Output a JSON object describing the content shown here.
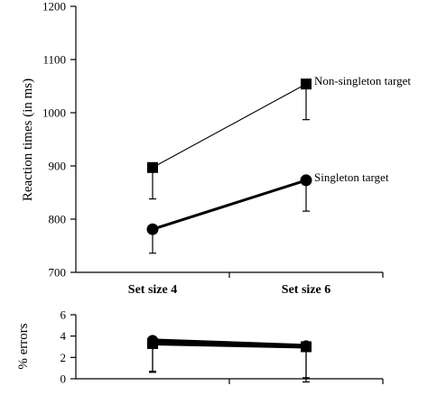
{
  "chart_data": [
    {
      "type": "line",
      "categories": [
        "Set size 4",
        "Set size 6"
      ],
      "ylabel": "Reaction times (in ms)",
      "ylim": [
        700,
        1200
      ],
      "yticks": [
        "700",
        "800",
        "900",
        "1000",
        "1100",
        "1200"
      ],
      "series": [
        {
          "name": "Non-singleton target",
          "marker": "square",
          "line_weight": "thin",
          "values": [
            897,
            1054
          ],
          "error_low": [
            838,
            987
          ]
        },
        {
          "name": "Singleton target",
          "marker": "circle",
          "line_weight": "thick",
          "values": [
            781,
            873
          ],
          "error_low": [
            736,
            815
          ]
        }
      ]
    },
    {
      "type": "line",
      "categories": [
        "Set size 4",
        "Set size 6"
      ],
      "ylabel": "% errors",
      "ylim": [
        0,
        6
      ],
      "yticks": [
        "0",
        "2",
        "4",
        "6"
      ],
      "series": [
        {
          "marker": "square",
          "values": [
            3.3,
            3.0
          ],
          "error_low": [
            0.7,
            -0.3
          ]
        },
        {
          "marker": "circle",
          "values": [
            3.6,
            3.1
          ],
          "error_low": [
            0.6,
            0.1
          ]
        }
      ]
    }
  ]
}
